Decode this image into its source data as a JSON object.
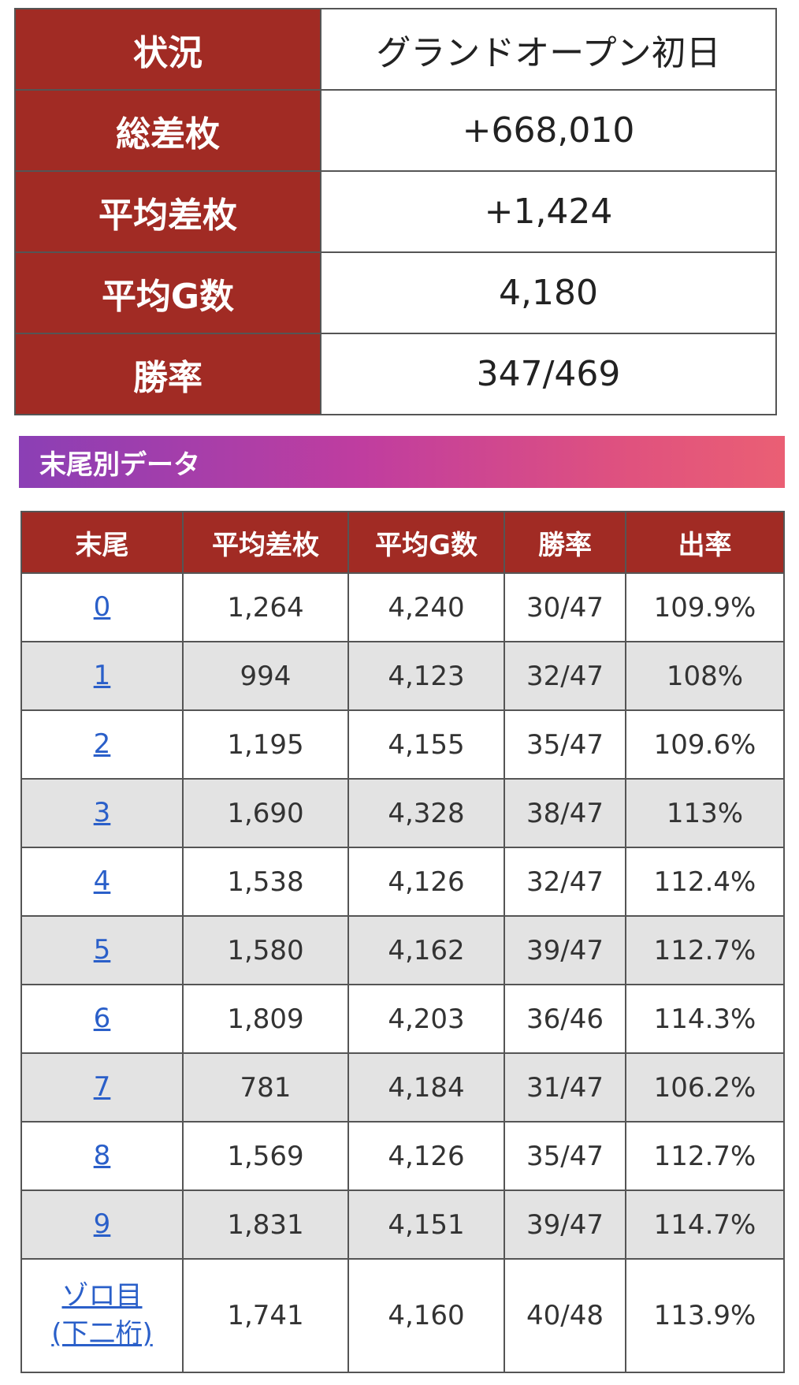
{
  "summary": {
    "rows": [
      {
        "label": "状況",
        "value": "グランドオープン初日"
      },
      {
        "label": "総差枚",
        "value": "+668,010"
      },
      {
        "label": "平均差枚",
        "value": "+1,424"
      },
      {
        "label": "平均G数",
        "value": "4,180"
      },
      {
        "label": "勝率",
        "value": "347/469"
      }
    ]
  },
  "section": {
    "title": "末尾別データ"
  },
  "tail_table": {
    "headers": [
      "末尾",
      "平均差枚",
      "平均G数",
      "勝率",
      "出率"
    ],
    "rows": [
      {
        "tail": "0",
        "avg_diff": "1,264",
        "avg_games": "4,240",
        "win_rate": "30/47",
        "payout": "109.9%"
      },
      {
        "tail": "1",
        "avg_diff": "994",
        "avg_games": "4,123",
        "win_rate": "32/47",
        "payout": "108%"
      },
      {
        "tail": "2",
        "avg_diff": "1,195",
        "avg_games": "4,155",
        "win_rate": "35/47",
        "payout": "109.6%"
      },
      {
        "tail": "3",
        "avg_diff": "1,690",
        "avg_games": "4,328",
        "win_rate": "38/47",
        "payout": "113%"
      },
      {
        "tail": "4",
        "avg_diff": "1,538",
        "avg_games": "4,126",
        "win_rate": "32/47",
        "payout": "112.4%"
      },
      {
        "tail": "5",
        "avg_diff": "1,580",
        "avg_games": "4,162",
        "win_rate": "39/47",
        "payout": "112.7%"
      },
      {
        "tail": "6",
        "avg_diff": "1,809",
        "avg_games": "4,203",
        "win_rate": "36/46",
        "payout": "114.3%"
      },
      {
        "tail": "7",
        "avg_diff": "781",
        "avg_games": "4,184",
        "win_rate": "31/47",
        "payout": "106.2%"
      },
      {
        "tail": "8",
        "avg_diff": "1,569",
        "avg_games": "4,126",
        "win_rate": "35/47",
        "payout": "112.7%"
      },
      {
        "tail": "9",
        "avg_diff": "1,831",
        "avg_games": "4,151",
        "win_rate": "39/47",
        "payout": "114.7%"
      }
    ],
    "zorome": {
      "tail_line1": "ゾロ目",
      "tail_line2": "(下二桁)",
      "avg_diff": "1,741",
      "avg_games": "4,160",
      "win_rate": "40/48",
      "payout": "113.9%"
    }
  },
  "colors": {
    "header_red": "#a12b24",
    "link_blue": "#2a5fc9",
    "row_alt_gray": "#e3e3e3",
    "gradient_start": "#8b3fb5",
    "gradient_end": "#ea5f74"
  }
}
